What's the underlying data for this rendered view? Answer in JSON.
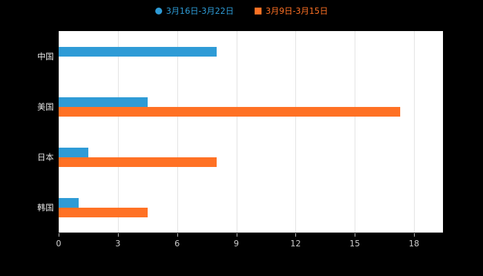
{
  "legend": {
    "series1_label": "3月16日-3月22日",
    "series2_label": "3月9日-3月15日"
  },
  "colors": {
    "series1": "#2e9bd6",
    "series2": "#ff7124",
    "plot_background": "#ffffff",
    "page_background": "#000000",
    "gridline": "#e2e2e2"
  },
  "chart_data": {
    "type": "bar",
    "orientation": "horizontal",
    "title": "",
    "xlabel": "",
    "ylabel": "",
    "categories": [
      "中国",
      "美国",
      "日本",
      "韩国"
    ],
    "series": [
      {
        "name": "3月16日-3月22日",
        "color": "#2e9bd6",
        "values": [
          8,
          4.5,
          1.5,
          1
        ]
      },
      {
        "name": "3月9日-3月15日",
        "color": "#ff7124",
        "values": [
          0,
          17.3,
          8,
          4.5
        ]
      }
    ],
    "xlim": [
      0,
      18
    ],
    "xticks": [
      0,
      3,
      6,
      9,
      12,
      15,
      18
    ],
    "grid": true,
    "legend_position": "top"
  }
}
